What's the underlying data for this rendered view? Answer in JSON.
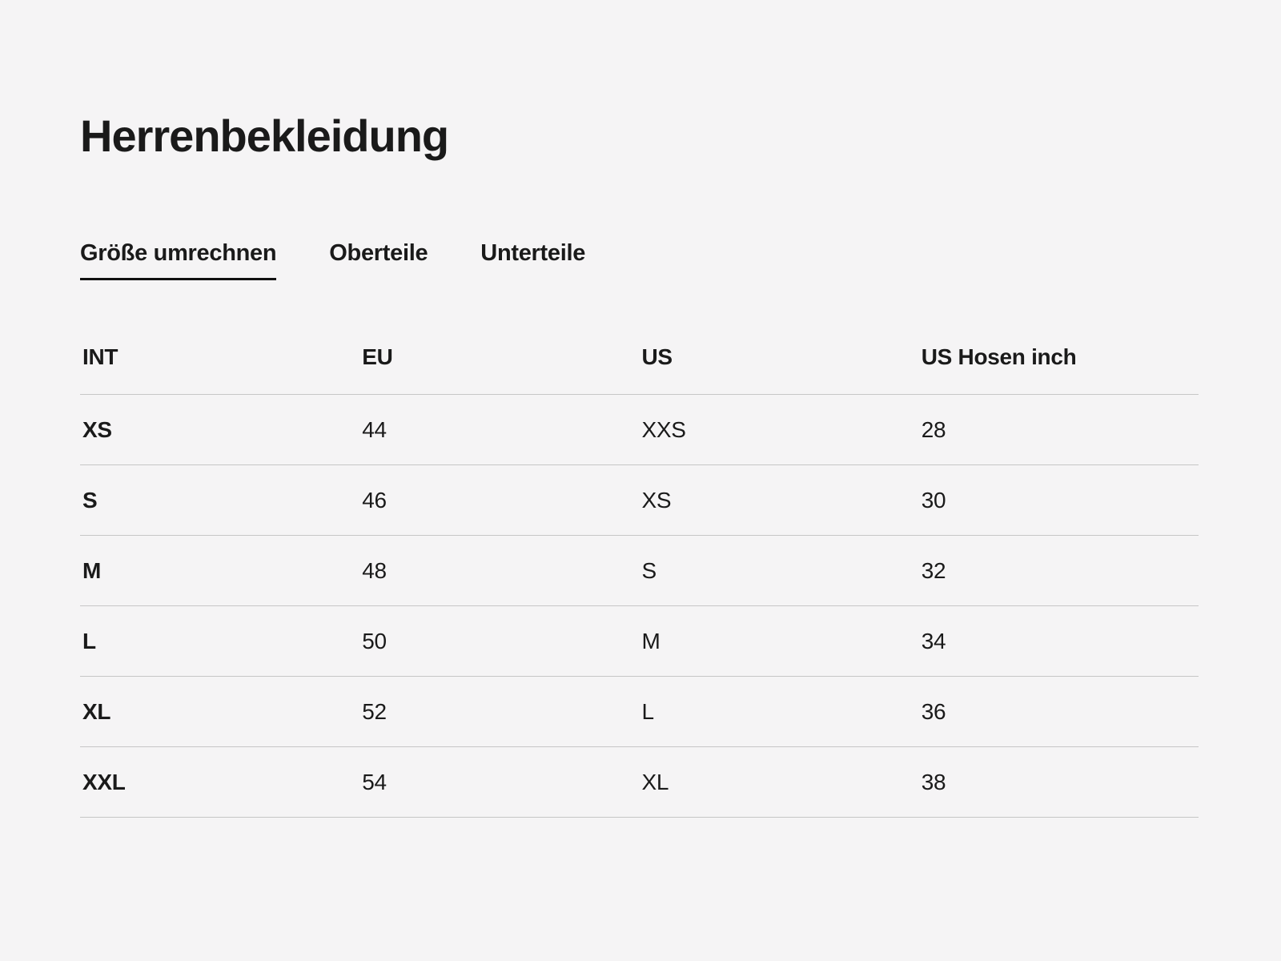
{
  "page": {
    "title": "Herrenbekleidung",
    "background_color": "#f5f4f5",
    "text_color": "#1a1a1a",
    "divider_color": "#c6c6c6",
    "active_tab_underline_color": "#111111"
  },
  "tabs": [
    {
      "label": "Größe umrechnen",
      "active": true
    },
    {
      "label": "Oberteile",
      "active": false
    },
    {
      "label": "Unterteile",
      "active": false
    }
  ],
  "size_table": {
    "columns": [
      "INT",
      "EU",
      "US",
      "US Hosen inch"
    ],
    "rows": [
      {
        "int": "XS",
        "eu": "44",
        "us": "XXS",
        "us_hosen_inch": "28"
      },
      {
        "int": "S",
        "eu": "46",
        "us": "XS",
        "us_hosen_inch": "30"
      },
      {
        "int": "M",
        "eu": "48",
        "us": "S",
        "us_hosen_inch": "32"
      },
      {
        "int": "L",
        "eu": "50",
        "us": "M",
        "us_hosen_inch": "34"
      },
      {
        "int": "XL",
        "eu": "52",
        "us": "L",
        "us_hosen_inch": "36"
      },
      {
        "int": "XXL",
        "eu": "54",
        "us": "XL",
        "us_hosen_inch": "38"
      }
    ]
  }
}
